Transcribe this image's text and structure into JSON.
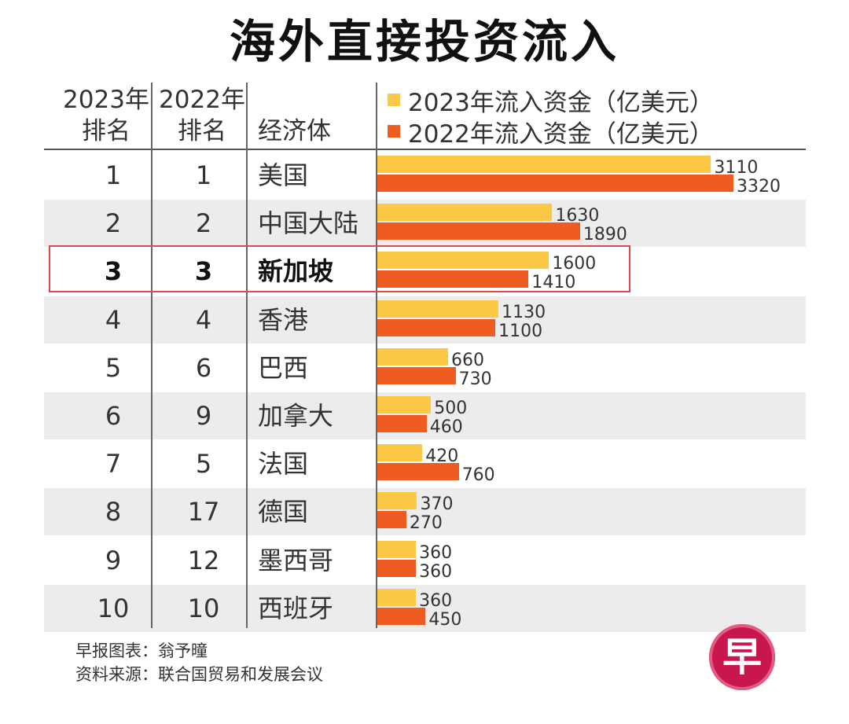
{
  "title": "海外直接投资流入",
  "header": {
    "col1_line1": "2023年",
    "col1_line2": "排名",
    "col2_line1": "2022年",
    "col2_line2": "排名",
    "col3": "经济体"
  },
  "colors": {
    "bar_2023": "#fcc845",
    "bar_2022": "#ee5c22",
    "row_band": "#ececec",
    "highlight": "#e0484b"
  },
  "chart_data": {
    "type": "bar",
    "title": "海外直接投资流入",
    "orientation": "horizontal",
    "categories": [
      "美国",
      "中国大陆",
      "新加坡",
      "香港",
      "巴西",
      "加拿大",
      "法国",
      "德国",
      "墨西哥",
      "西班牙"
    ],
    "rank_2023": [
      "1",
      "2",
      "3",
      "4",
      "5",
      "6",
      "7",
      "8",
      "9",
      "10"
    ],
    "rank_2022": [
      "1",
      "2",
      "3",
      "4",
      "6",
      "9",
      "5",
      "17",
      "12",
      "10"
    ],
    "series": [
      {
        "name": "2023年流入资金（亿美元）",
        "values": [
          3110,
          1630,
          1600,
          1130,
          660,
          500,
          420,
          370,
          360,
          360
        ]
      },
      {
        "name": "2022年流入资金（亿美元）",
        "values": [
          3320,
          1890,
          1410,
          1100,
          730,
          460,
          760,
          270,
          360,
          450
        ]
      }
    ],
    "highlighted_category": "新加坡",
    "legend_position": "top"
  },
  "footer": {
    "line1": "早报图表：翁予曈",
    "line2": "资料来源：联合国贸易和发展会议"
  },
  "logo_text": "早"
}
